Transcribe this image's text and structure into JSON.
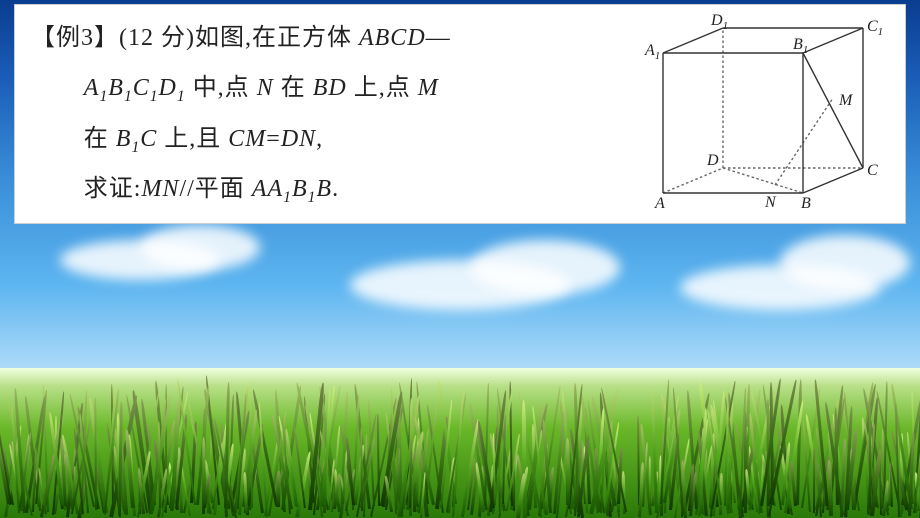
{
  "problem": {
    "label": "【例3】",
    "points": "(12 分)",
    "line1_a": "如图,在正方体 ",
    "line1_b": "ABCD",
    "line1_dash": "—",
    "line2_a": "A",
    "line2_a1": "1",
    "line2_b": "B",
    "line2_b1": "1",
    "line2_c": "C",
    "line2_c1": "1",
    "line2_d": "D",
    "line2_d1": "1",
    "line2_mid": " 中,点 ",
    "line2_N": "N",
    "line2_on": " 在 ",
    "line2_BD": "BD",
    "line2_up": " 上,点 ",
    "line2_M": "M",
    "line3_on": "在 ",
    "line3_B1C": "B",
    "line3_B1C_1": "1",
    "line3_B1C_C": "C",
    "line3_and": " 上,且 ",
    "line3_CM": "CM",
    "line3_eq": "=",
    "line3_DN": "DN",
    "line3_comma": ",",
    "line4_a": "求证:",
    "line4_MN": "MN",
    "line4_par": "//平面 ",
    "line4_AA1B1B_A": "AA",
    "line4_AA1B1B_1": "1",
    "line4_AA1B1B_B": "B",
    "line4_AA1B1B_11": "1",
    "line4_AA1B1B_B2": "B",
    "line4_period": "."
  },
  "diagram": {
    "labels": {
      "A": "A",
      "B": "B",
      "C": "C",
      "D": "D",
      "A1": "A",
      "B1": "B",
      "C1": "C",
      "D1": "D",
      "M": "M",
      "N": "N",
      "sub1": "1"
    },
    "stroke_solid": "#333333",
    "stroke_dash": "#666666",
    "stroke_width": 1.4,
    "dash": "2.5,2.5",
    "background": "#ffffff"
  },
  "scene": {
    "sky_colors": [
      "#0a3d8f",
      "#3a8fd8",
      "#a8d8f8",
      "#ffffff"
    ],
    "grass_colors": [
      "#f0ffe0",
      "#6ab828",
      "#2a7808"
    ],
    "cloud_color": "#ffffff"
  }
}
